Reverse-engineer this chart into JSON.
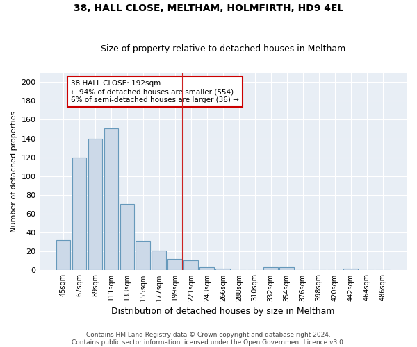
{
  "title": "38, HALL CLOSE, MELTHAM, HOLMFIRTH, HD9 4EL",
  "subtitle": "Size of property relative to detached houses in Meltham",
  "xlabel": "Distribution of detached houses by size in Meltham",
  "ylabel": "Number of detached properties",
  "bar_color": "#ccd9e8",
  "bar_edge_color": "#6699bb",
  "background_color": "#e8eef5",
  "categories": [
    "45sqm",
    "67sqm",
    "89sqm",
    "111sqm",
    "133sqm",
    "155sqm",
    "177sqm",
    "199sqm",
    "221sqm",
    "243sqm",
    "266sqm",
    "288sqm",
    "310sqm",
    "332sqm",
    "354sqm",
    "376sqm",
    "398sqm",
    "420sqm",
    "442sqm",
    "464sqm",
    "486sqm"
  ],
  "values": [
    32,
    120,
    140,
    151,
    70,
    31,
    21,
    12,
    11,
    3,
    2,
    0,
    0,
    3,
    3,
    0,
    0,
    0,
    2,
    0,
    0
  ],
  "ylim": [
    0,
    210
  ],
  "yticks": [
    0,
    20,
    40,
    60,
    80,
    100,
    120,
    140,
    160,
    180,
    200
  ],
  "property_line_x": 7.5,
  "annotation_text": "38 HALL CLOSE: 192sqm\n← 94% of detached houses are smaller (554)\n6% of semi-detached houses are larger (36) →",
  "annotation_box_color": "#ffffff",
  "annotation_box_edge_color": "#cc0000",
  "vline_color": "#cc2222",
  "footnote": "Contains HM Land Registry data © Crown copyright and database right 2024.\nContains public sector information licensed under the Open Government Licence v3.0."
}
